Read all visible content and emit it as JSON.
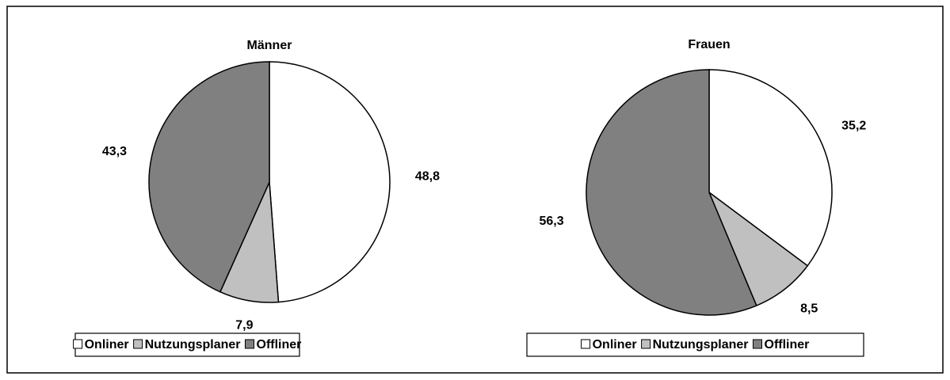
{
  "chart_data": [
    {
      "type": "pie",
      "title": "Männer",
      "categories": [
        "Onliner",
        "Nutzungsplaner",
        "Offliner"
      ],
      "values": [
        48.8,
        7.9,
        43.3
      ],
      "value_labels": [
        "48,8",
        "7,9",
        "43,3"
      ],
      "colors": [
        "#ffffff",
        "#c0c0c0",
        "#808080"
      ]
    },
    {
      "type": "pie",
      "title": "Frauen",
      "categories": [
        "Onliner",
        "Nutzungsplaner",
        "Offliner"
      ],
      "values": [
        35.2,
        8.5,
        56.3
      ],
      "value_labels": [
        "35,2",
        "8,5",
        "56,3"
      ],
      "colors": [
        "#ffffff",
        "#c0c0c0",
        "#808080"
      ]
    }
  ]
}
